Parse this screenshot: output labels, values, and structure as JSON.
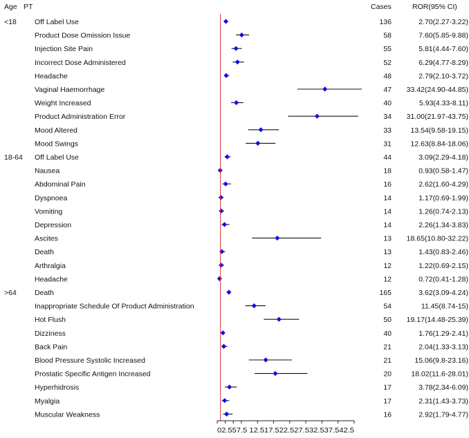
{
  "chart_data": {
    "type": "forest",
    "headers": {
      "age": "Age",
      "pt": "PT",
      "cases": "Cases",
      "ror": "ROR(95% CI)"
    },
    "reference_line": 1,
    "xlim": [
      0,
      42.5
    ],
    "x_tick_values": [
      0,
      2.5,
      5,
      7.5,
      12.5,
      17.5,
      22.5,
      27.5,
      32.5,
      37.5,
      42.5
    ],
    "x_tick_text": "02.557.5 12.517.522.527.532.537.542.5",
    "colors": {
      "point": "#1010e0",
      "ci_line": "#111111",
      "reference": "#e03030",
      "axis": "#222222"
    },
    "groups": [
      {
        "age": "<18",
        "rows": [
          {
            "pt": "Off Label Use",
            "cases": 136,
            "ror": 2.7,
            "lo": 2.27,
            "hi": 3.22,
            "label": "2.70(2.27-3.22)"
          },
          {
            "pt": "Product Dose Omission Issue",
            "cases": 58,
            "ror": 7.6,
            "lo": 5.85,
            "hi": 9.88,
            "label": "7.60(5.85-9.88)"
          },
          {
            "pt": "Injection Site Pain",
            "cases": 55,
            "ror": 5.81,
            "lo": 4.44,
            "hi": 7.6,
            "label": "5.81(4.44-7.60)"
          },
          {
            "pt": "Incorrect Dose Administered",
            "cases": 52,
            "ror": 6.29,
            "lo": 4.77,
            "hi": 8.29,
            "label": "6.29(4.77-8.29)"
          },
          {
            "pt": "Headache",
            "cases": 48,
            "ror": 2.79,
            "lo": 2.1,
            "hi": 3.72,
            "label": "2.79(2.10-3.72)"
          },
          {
            "pt": "Vaginal Haemorrhage",
            "cases": 47,
            "ror": 33.42,
            "lo": 24.9,
            "hi": 44.85,
            "label": "33.42(24.90-44.85)"
          },
          {
            "pt": "Weight Increased",
            "cases": 40,
            "ror": 5.93,
            "lo": 4.33,
            "hi": 8.11,
            "label": "5.93(4.33-8.11)"
          },
          {
            "pt": "Product Administration Error",
            "cases": 34,
            "ror": 31.0,
            "lo": 21.97,
            "hi": 43.75,
            "label": "31.00(21.97-43.75)"
          },
          {
            "pt": "Mood Altered",
            "cases": 33,
            "ror": 13.54,
            "lo": 9.58,
            "hi": 19.15,
            "label": "13.54(9.58-19.15)"
          },
          {
            "pt": "Mood Swings",
            "cases": 31,
            "ror": 12.63,
            "lo": 8.84,
            "hi": 18.06,
            "label": "12.63(8.84-18.06)"
          }
        ]
      },
      {
        "age": "18-64",
        "rows": [
          {
            "pt": "Off Label Use",
            "cases": 44,
            "ror": 3.09,
            "lo": 2.29,
            "hi": 4.18,
            "label": "3.09(2.29-4.18)"
          },
          {
            "pt": "Nausea",
            "cases": 18,
            "ror": 0.93,
            "lo": 0.58,
            "hi": 1.47,
            "label": "0.93(0.58-1.47)"
          },
          {
            "pt": "Abdominal Pain",
            "cases": 16,
            "ror": 2.62,
            "lo": 1.6,
            "hi": 4.29,
            "label": "2.62(1.60-4.29)"
          },
          {
            "pt": "Dyspnoea",
            "cases": 14,
            "ror": 1.17,
            "lo": 0.69,
            "hi": 1.99,
            "label": "1.17(0.69-1.99)"
          },
          {
            "pt": "Vomiting",
            "cases": 14,
            "ror": 1.26,
            "lo": 0.74,
            "hi": 2.13,
            "label": "1.26(0.74-2.13)"
          },
          {
            "pt": "Depression",
            "cases": 14,
            "ror": 2.26,
            "lo": 1.34,
            "hi": 3.83,
            "label": "2.26(1.34-3.83)"
          },
          {
            "pt": "Ascites",
            "cases": 13,
            "ror": 18.65,
            "lo": 10.8,
            "hi": 32.22,
            "label": "18.65(10.80-32.22)"
          },
          {
            "pt": "Death",
            "cases": 13,
            "ror": 1.43,
            "lo": 0.83,
            "hi": 2.46,
            "label": "1.43(0.83-2.46)"
          },
          {
            "pt": "Arthralgia",
            "cases": 12,
            "ror": 1.22,
            "lo": 0.69,
            "hi": 2.15,
            "label": "1.22(0.69-2.15)"
          },
          {
            "pt": "Headache",
            "cases": 12,
            "ror": 0.72,
            "lo": 0.41,
            "hi": 1.28,
            "label": "0.72(0.41-1.28)"
          }
        ]
      },
      {
        "age": ">64",
        "rows": [
          {
            "pt": "Death",
            "cases": 165,
            "ror": 3.62,
            "lo": 3.09,
            "hi": 4.24,
            "label": "3.62(3.09-4.24)"
          },
          {
            "pt": "Inappropriate Schedule Of Product Administration",
            "cases": 54,
            "ror": 11.45,
            "lo": 8.74,
            "hi": 15,
            "label": "11.45(8.74-15)"
          },
          {
            "pt": "Hot Flush",
            "cases": 50,
            "ror": 19.17,
            "lo": 14.48,
            "hi": 25.39,
            "label": "19.17(14.48-25.39)"
          },
          {
            "pt": "Dizziness",
            "cases": 40,
            "ror": 1.76,
            "lo": 1.29,
            "hi": 2.41,
            "label": "1.76(1.29-2.41)"
          },
          {
            "pt": "Back Pain",
            "cases": 21,
            "ror": 2.04,
            "lo": 1.33,
            "hi": 3.13,
            "label": "2.04(1.33-3.13)"
          },
          {
            "pt": "Blood Pressure Systolic Increased",
            "cases": 21,
            "ror": 15.06,
            "lo": 9.8,
            "hi": 23.16,
            "label": "15.06(9.8-23.16)"
          },
          {
            "pt": "Prostatic Specific Antigen Increased",
            "cases": 20,
            "ror": 18.02,
            "lo": 11.6,
            "hi": 28.01,
            "label": "18.02(11.6-28.01)"
          },
          {
            "pt": "Hyperhidrosis",
            "cases": 17,
            "ror": 3.78,
            "lo": 2.34,
            "hi": 6.09,
            "label": "3.78(2.34-6.09)"
          },
          {
            "pt": "Myalgia",
            "cases": 17,
            "ror": 2.31,
            "lo": 1.43,
            "hi": 3.73,
            "label": "2.31(1.43-3.73)"
          },
          {
            "pt": "Muscular Weakness",
            "cases": 16,
            "ror": 2.92,
            "lo": 1.79,
            "hi": 4.77,
            "label": "2.92(1.79-4.77)"
          }
        ]
      }
    ]
  }
}
